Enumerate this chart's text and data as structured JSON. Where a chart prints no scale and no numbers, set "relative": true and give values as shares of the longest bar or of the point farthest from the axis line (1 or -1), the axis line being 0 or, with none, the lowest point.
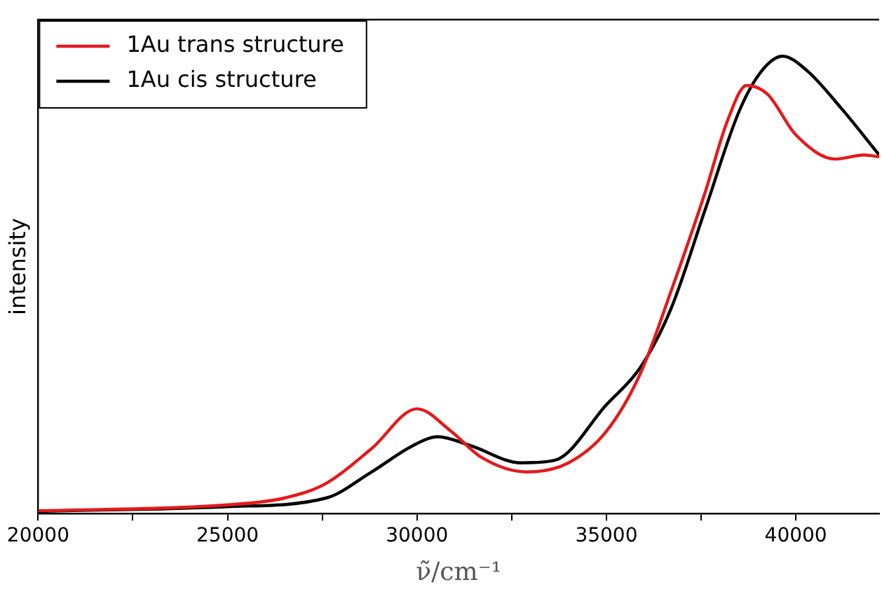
{
  "chart_data": {
    "type": "line",
    "relative": true,
    "xlabel": "ν̃/cm⁻¹",
    "ylabel": "intensity",
    "xlim": [
      20000,
      42200
    ],
    "xticks": [
      20000,
      {
        "value": 22500,
        "label": null
      },
      25000,
      {
        "value": 27500,
        "label": null
      },
      30000,
      {
        "value": 32500,
        "label": null
      },
      35000,
      {
        "value": 37500,
        "label": null
      },
      40000
    ],
    "legend": "top left",
    "grid": false,
    "marker": "none",
    "line_style": "solid",
    "series": [
      {
        "name": "1Au trans structure",
        "color": "#e41a1c",
        "x": [
          20000,
          25000,
          26500,
          27600,
          28800,
          30000,
          30900,
          31700,
          32900,
          34000,
          35000,
          35900,
          36700,
          37600,
          38200,
          38700,
          39250,
          40000,
          41050,
          41800,
          42200
        ],
        "values": [
          0.006,
          0.019,
          0.034,
          0.066,
          0.142,
          0.229,
          0.18,
          0.123,
          0.091,
          0.111,
          0.18,
          0.307,
          0.485,
          0.701,
          0.86,
          0.936,
          0.917,
          0.828,
          0.775,
          0.784,
          0.78
        ]
      },
      {
        "name": "1Au cis structure",
        "color": "#000000",
        "x": [
          20000,
          25000,
          27600,
          28800,
          29900,
          30550,
          31400,
          32750,
          33650,
          35000,
          35900,
          36700,
          37600,
          38500,
          39100,
          39650,
          40300,
          41200,
          42200
        ],
        "values": [
          0.005,
          0.015,
          0.034,
          0.091,
          0.149,
          0.168,
          0.149,
          0.111,
          0.117,
          0.238,
          0.32,
          0.447,
          0.663,
          0.879,
          0.968,
          1,
          0.968,
          0.886,
          0.784
        ]
      }
    ]
  }
}
